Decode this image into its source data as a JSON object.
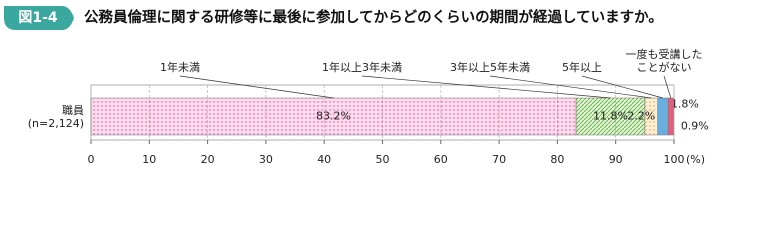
{
  "chart_data": {
    "type": "stacked-bar-horizontal",
    "figure_label": "図1-4",
    "title": "公務員倫理に関する研修等に最後に参加してからどのくらいの期間が経過していますか。",
    "categories": [
      "職員\n(n=2,124)"
    ],
    "series": [
      {
        "name": "1年未満",
        "color": "#e8409a",
        "pattern": "dots",
        "values": [
          83.2
        ],
        "value_labels": [
          "83.2%"
        ]
      },
      {
        "name": "1年以上3年未満",
        "color": "#5cb030",
        "pattern": "hatch",
        "values": [
          11.8
        ],
        "value_labels": [
          "11.8%"
        ]
      },
      {
        "name": "3年以上5年未満",
        "color": "#f0a020",
        "pattern": "dots",
        "values": [
          2.2
        ],
        "value_labels": [
          "2.2%"
        ]
      },
      {
        "name": "5年以上",
        "color": "#6aaee0",
        "pattern": "solid",
        "values": [
          1.8
        ],
        "value_labels": [
          "1.8%"
        ]
      },
      {
        "name": "一度も受講した\nことがない",
        "color": "#e06080",
        "pattern": "solid",
        "values": [
          0.9
        ],
        "value_labels": [
          "0.9%"
        ]
      }
    ],
    "xlim": [
      0,
      100
    ],
    "xticks": [
      0,
      10,
      20,
      30,
      40,
      50,
      60,
      70,
      80,
      90,
      100
    ],
    "xlabel": "(%)",
    "grid": true
  }
}
